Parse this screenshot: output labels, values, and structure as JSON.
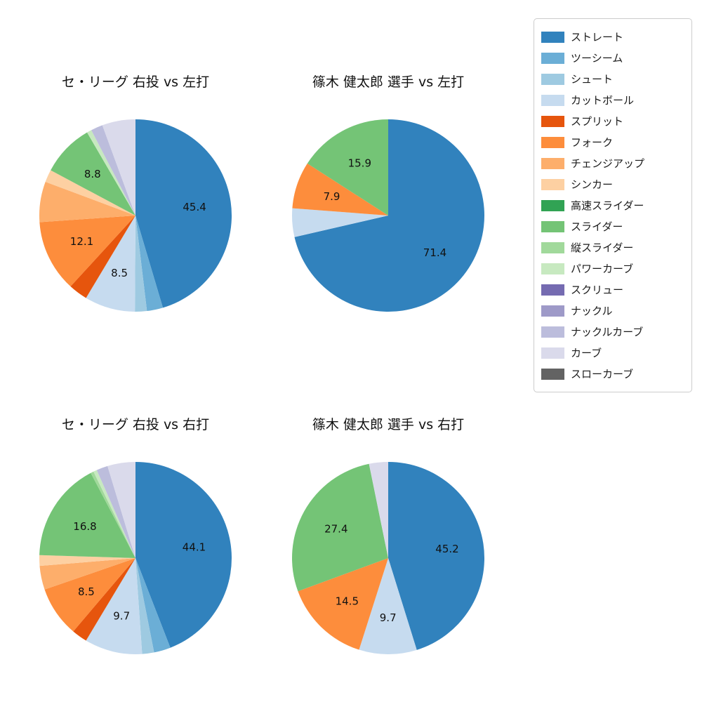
{
  "page": {
    "background_color": "#ffffff",
    "text_color": "#111111"
  },
  "legend": {
    "position": "top-right",
    "border_color": "#cccccc",
    "items": [
      {
        "label": "ストレート",
        "color": "#3182bd"
      },
      {
        "label": "ツーシーム",
        "color": "#6baed6"
      },
      {
        "label": "シュート",
        "color": "#9ecae1"
      },
      {
        "label": "カットボール",
        "color": "#c6dbef"
      },
      {
        "label": "スプリット",
        "color": "#e6550d"
      },
      {
        "label": "フォーク",
        "color": "#fd8d3c"
      },
      {
        "label": "チェンジアップ",
        "color": "#fdae6b"
      },
      {
        "label": "シンカー",
        "color": "#fdd0a2"
      },
      {
        "label": "高速スライダー",
        "color": "#31a354"
      },
      {
        "label": "スライダー",
        "color": "#74c476"
      },
      {
        "label": "縦スライダー",
        "color": "#a1d99b"
      },
      {
        "label": "パワーカーブ",
        "color": "#c7e9c0"
      },
      {
        "label": "スクリュー",
        "color": "#756bb1"
      },
      {
        "label": "ナックル",
        "color": "#9e9ac8"
      },
      {
        "label": "ナックルカーブ",
        "color": "#bcbddc"
      },
      {
        "label": "カーブ",
        "color": "#dadaeb"
      },
      {
        "label": "スローカーブ",
        "color": "#636363"
      }
    ]
  },
  "chart_data": [
    {
      "type": "pie",
      "title": "セ・リーグ 右投 vs 左打",
      "start_angle_deg": 90,
      "direction": "clockwise",
      "labeled_values_exact": true,
      "slices": [
        {
          "name": "ストレート",
          "value": 45.4,
          "label": "45.4"
        },
        {
          "name": "ツーシーム",
          "value": 2.7
        },
        {
          "name": "シュート",
          "value": 2.0
        },
        {
          "name": "カットボール",
          "value": 8.5,
          "label": "8.5"
        },
        {
          "name": "スプリット",
          "value": 3.2
        },
        {
          "name": "フォーク",
          "value": 12.1,
          "label": "12.1"
        },
        {
          "name": "チェンジアップ",
          "value": 6.8
        },
        {
          "name": "シンカー",
          "value": 2.1
        },
        {
          "name": "スライダー",
          "value": 8.8,
          "label": "8.8"
        },
        {
          "name": "パワーカーブ",
          "value": 0.8
        },
        {
          "name": "ナックルカーブ",
          "value": 2.0
        },
        {
          "name": "カーブ",
          "value": 5.6
        }
      ]
    },
    {
      "type": "pie",
      "title": "篠木 健太郎 選手 vs 左打",
      "start_angle_deg": 90,
      "direction": "clockwise",
      "labeled_values_exact": true,
      "slices": [
        {
          "name": "ストレート",
          "value": 71.4,
          "label": "71.4"
        },
        {
          "name": "カットボール",
          "value": 4.8
        },
        {
          "name": "フォーク",
          "value": 7.9,
          "label": "7.9"
        },
        {
          "name": "スライダー",
          "value": 15.9,
          "label": "15.9"
        }
      ]
    },
    {
      "type": "pie",
      "title": "セ・リーグ 右投 vs 右打",
      "start_angle_deg": 90,
      "direction": "clockwise",
      "labeled_values_exact": true,
      "slices": [
        {
          "name": "ストレート",
          "value": 44.1,
          "label": "44.1"
        },
        {
          "name": "ツーシーム",
          "value": 2.8
        },
        {
          "name": "シュート",
          "value": 2.0
        },
        {
          "name": "カットボール",
          "value": 9.7,
          "label": "9.7"
        },
        {
          "name": "スプリット",
          "value": 2.6
        },
        {
          "name": "フォーク",
          "value": 8.5,
          "label": "8.5"
        },
        {
          "name": "チェンジアップ",
          "value": 4.0
        },
        {
          "name": "シンカー",
          "value": 1.8
        },
        {
          "name": "スライダー",
          "value": 16.8,
          "label": "16.8"
        },
        {
          "name": "縦スライダー",
          "value": 0.5
        },
        {
          "name": "パワーカーブ",
          "value": 0.6
        },
        {
          "name": "ナックルカーブ",
          "value": 1.9
        },
        {
          "name": "カーブ",
          "value": 4.7
        }
      ]
    },
    {
      "type": "pie",
      "title": "篠木 健太郎 選手 vs 右打",
      "start_angle_deg": 90,
      "direction": "clockwise",
      "labeled_values_exact": true,
      "slices": [
        {
          "name": "ストレート",
          "value": 45.2,
          "label": "45.2"
        },
        {
          "name": "カットボール",
          "value": 9.7,
          "label": "9.7"
        },
        {
          "name": "フォーク",
          "value": 14.5,
          "label": "14.5"
        },
        {
          "name": "スライダー",
          "value": 27.4,
          "label": "27.4"
        },
        {
          "name": "カーブ",
          "value": 3.2
        }
      ]
    }
  ]
}
